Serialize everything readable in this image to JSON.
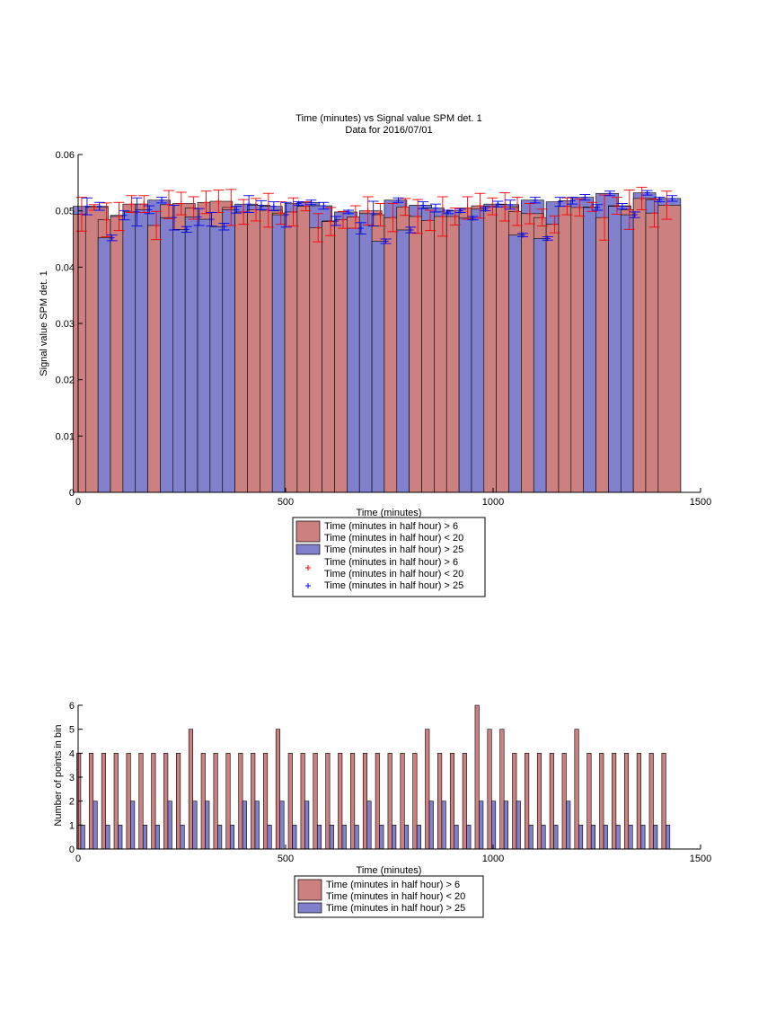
{
  "chart_data": [
    {
      "type": "bar",
      "title": "Time (minutes) vs Signal value SPM det. 1",
      "subtitle": "Data for 2016/07/01",
      "xlabel": "Time (minutes)",
      "ylabel": "Signal value SPM det. 1",
      "xlim": [
        0,
        1500
      ],
      "ylim": [
        0,
        0.06
      ],
      "xticks": [
        "0",
        "500",
        "1000",
        "1500"
      ],
      "yticks": [
        "0",
        "0.01",
        "0.02",
        "0.03",
        "0.04",
        "0.05",
        "0.06"
      ],
      "grid": false,
      "bin_width_minutes": 30,
      "x": [
        15,
        45,
        75,
        105,
        135,
        165,
        195,
        225,
        255,
        285,
        315,
        345,
        375,
        405,
        435,
        465,
        495,
        525,
        555,
        585,
        615,
        645,
        675,
        705,
        735,
        765,
        795,
        825,
        855,
        885,
        915,
        945,
        975,
        1005,
        1035,
        1065,
        1095,
        1125,
        1155,
        1185,
        1215,
        1245,
        1275,
        1305,
        1335,
        1365,
        1395,
        1425
      ],
      "series": [
        {
          "name": "Time (minutes in half hour) > 6\nTime (minutes in half hour) < 20",
          "color": "#cc8080",
          "values": [
            0.0494,
            0.0506,
            0.0484,
            0.049,
            0.0512,
            0.0512,
            0.0474,
            0.0511,
            0.0513,
            0.0505,
            0.0515,
            0.0517,
            0.0506,
            0.0498,
            0.0502,
            0.0501,
            0.0496,
            0.0498,
            0.0508,
            0.047,
            0.0481,
            0.0484,
            0.0489,
            0.05,
            0.0493,
            0.0488,
            0.0507,
            0.049,
            0.0483,
            0.049,
            0.049,
            0.0505,
            0.0509,
            0.0508,
            0.0507,
            0.0499,
            0.0495,
            0.0488,
            0.0476,
            0.0508,
            0.0506,
            0.0507,
            0.0488,
            0.0509,
            0.0502,
            0.0522,
            0.0496,
            0.051
          ],
          "error": [
            0.003,
            0.0005,
            0.003,
            0.0025,
            0.0015,
            0.0015,
            0.0025,
            0.0025,
            0.002,
            0.002,
            0.002,
            0.002,
            0.0032,
            0.0022,
            0.002,
            0.003,
            0.002,
            0.0025,
            0.0008,
            0.0025,
            0.0025,
            0.0015,
            0.002,
            0.0025,
            0.002,
            0.0025,
            0.0015,
            0.003,
            0.0018,
            0.0035,
            0.0015,
            0.002,
            0.0022,
            0.0015,
            0.0025,
            0.0025,
            0.0018,
            0.0015,
            0.0015,
            0.0015,
            0.0015,
            0.0008,
            0.004,
            0.0015,
            0.0035,
            0.002,
            0.0025,
            0.0025
          ]
        },
        {
          "name": "Time (minutes in half hour) > 25",
          "color": "#8080cc",
          "values": [
            0.0508,
            0.0508,
            0.0452,
            0.0492,
            0.0498,
            0.0502,
            0.0519,
            0.0488,
            0.0467,
            0.0489,
            0.0485,
            0.0472,
            0.0502,
            0.0512,
            0.051,
            0.0508,
            0.0493,
            0.0513,
            0.0515,
            0.0509,
            0.0482,
            0.0498,
            0.0469,
            0.0495,
            0.0446,
            0.0519,
            0.0466,
            0.051,
            0.0505,
            0.0498,
            0.05,
            0.0487,
            0.0503,
            0.0512,
            0.0511,
            0.0457,
            0.0519,
            0.0451,
            0.0516,
            0.0518,
            0.0524,
            0.0506,
            0.0531,
            0.0508,
            0.0493,
            0.0532,
            0.052,
            0.0522
          ],
          "error": [
            0.0015,
            0.0007,
            0.0005,
            0.0008,
            0.0025,
            0.0007,
            0.0005,
            0.0022,
            0.0005,
            0.0015,
            0.0012,
            0.0006,
            0.0006,
            0.0015,
            0.0008,
            0.0008,
            0.0022,
            0.0003,
            0.0004,
            0.0006,
            0.0008,
            0.0003,
            0.001,
            0.0022,
            0.0004,
            0.0004,
            0.0005,
            0.0006,
            0.0007,
            0.0003,
            0.0003,
            0.0003,
            0.0003,
            0.0005,
            0.0008,
            0.0003,
            0.0005,
            0.0003,
            0.0008,
            0.0006,
            0.0005,
            0.0005,
            0.0004,
            0.0005,
            0.0005,
            0.0004,
            0.0004,
            0.0005
          ]
        }
      ],
      "legend": {
        "placement": "below",
        "entries": [
          {
            "label": "Time (minutes in half hour) > 6\nTime (minutes in half hour) < 20",
            "marker": "bar",
            "color": "#cc8080"
          },
          {
            "label": "Time (minutes in half hour) > 25",
            "marker": "bar",
            "color": "#8080cc"
          },
          {
            "label": "Time (minutes in half hour) > 6\nTime (minutes in half hour) < 20",
            "marker": "+",
            "color": "#ff0000"
          },
          {
            "label": "Time (minutes in half hour) > 25",
            "marker": "+",
            "color": "#0000ff"
          }
        ]
      }
    },
    {
      "type": "bar",
      "title": "",
      "xlabel": "Time (minutes)",
      "ylabel": "Number of points in bin",
      "xlim": [
        0,
        1500
      ],
      "ylim": [
        0,
        6
      ],
      "xticks": [
        "0",
        "500",
        "1000",
        "1500"
      ],
      "yticks": [
        "0",
        "1",
        "2",
        "3",
        "4",
        "5",
        "6"
      ],
      "grid": false,
      "x": [
        15,
        45,
        75,
        105,
        135,
        165,
        195,
        225,
        255,
        285,
        315,
        345,
        375,
        405,
        435,
        465,
        495,
        525,
        555,
        585,
        615,
        645,
        675,
        705,
        735,
        765,
        795,
        825,
        855,
        885,
        915,
        945,
        975,
        1005,
        1035,
        1065,
        1095,
        1125,
        1155,
        1185,
        1215,
        1245,
        1275,
        1305,
        1335,
        1365,
        1395,
        1425
      ],
      "series": [
        {
          "name": "Time (minutes in half hour) > 6\nTime (minutes in half hour) < 20",
          "color": "#cc8080",
          "values": [
            4,
            4,
            4,
            4,
            4,
            4,
            4,
            4,
            4,
            5,
            4,
            4,
            4,
            4,
            4,
            4,
            5,
            4,
            4,
            4,
            4,
            4,
            4,
            4,
            4,
            4,
            4,
            4,
            5,
            4,
            4,
            4,
            6,
            5,
            5,
            4,
            4,
            4,
            4,
            4,
            5,
            4,
            4,
            4,
            4,
            4,
            4,
            4
          ]
        },
        {
          "name": "Time (minutes in half hour) > 25",
          "color": "#8080cc",
          "values": [
            1,
            2,
            1,
            1,
            2,
            1,
            1,
            2,
            1,
            2,
            2,
            1,
            1,
            2,
            2,
            1,
            2,
            1,
            2,
            1,
            1,
            1,
            1,
            2,
            1,
            1,
            1,
            1,
            2,
            2,
            1,
            1,
            2,
            2,
            2,
            2,
            1,
            1,
            1,
            2,
            1,
            1,
            1,
            1,
            1,
            1,
            1,
            1
          ]
        }
      ],
      "legend": {
        "placement": "below",
        "entries": [
          {
            "label": "Time (minutes in half hour) > 6\nTime (minutes in half hour) < 20",
            "marker": "bar",
            "color": "#cc8080"
          },
          {
            "label": "Time (minutes in half hour) > 25",
            "marker": "bar",
            "color": "#8080cc"
          }
        ]
      }
    }
  ]
}
